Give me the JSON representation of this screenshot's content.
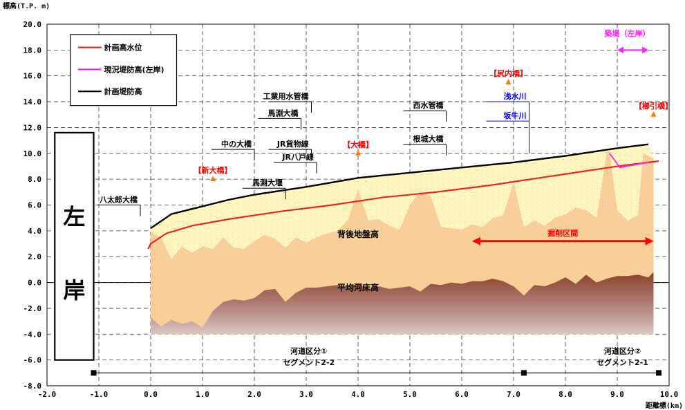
{
  "chart_data": {
    "type": "area",
    "ylabel": "標高(T.P. m)",
    "xlabel": "距離標(km)",
    "xlim": [
      -2.0,
      10.0
    ],
    "ylim": [
      -8.0,
      20.0
    ],
    "x_ticks": [
      "-2.0",
      "-1.0",
      "0.0",
      "1.0",
      "2.0",
      "3.0",
      "4.0",
      "5.0",
      "6.0",
      "7.0",
      "8.0",
      "9.0",
      "10.0"
    ],
    "y_ticks": [
      "20.0",
      "18.0",
      "16.0",
      "14.0",
      "12.0",
      "10.0",
      "8.0",
      "6.0",
      "4.0",
      "2.0",
      "0.0",
      "-2.0",
      "-4.0",
      "-6.0",
      "-8.0"
    ],
    "grid": true,
    "legend_position": "top-left",
    "series": [
      {
        "name": "計画高水位",
        "color": "#e8281e",
        "x": [
          -0.05,
          0.0,
          0.3,
          0.8,
          1.5,
          2.5,
          3.5,
          4.5,
          5.5,
          6.5,
          7.5,
          8.5,
          9.0,
          9.8
        ],
        "y": [
          2.6,
          3.0,
          3.8,
          4.4,
          4.9,
          5.5,
          6.0,
          6.6,
          7.0,
          7.5,
          8.1,
          8.7,
          9.0,
          9.4
        ]
      },
      {
        "name": "現況堤防高(左岸)",
        "color": "#ff22ff",
        "x": [
          8.85,
          9.05,
          9.6
        ],
        "y": [
          10.0,
          8.9,
          9.3
        ]
      },
      {
        "name": "計画堤防高",
        "color": "#000000",
        "x": [
          0.0,
          0.4,
          1.0,
          1.5,
          2.0,
          3.0,
          4.0,
          5.0,
          6.0,
          7.0,
          8.0,
          9.0,
          9.6
        ],
        "y": [
          4.2,
          5.3,
          5.9,
          6.4,
          6.8,
          7.4,
          8.1,
          8.5,
          8.9,
          9.3,
          9.8,
          10.4,
          10.7
        ]
      },
      {
        "name": "背後地盤高",
        "x": [
          0.0,
          0.2,
          0.4,
          0.6,
          0.8,
          1.0,
          1.2,
          1.4,
          1.6,
          1.8,
          2.0,
          2.2,
          2.4,
          2.6,
          2.8,
          3.0,
          3.2,
          3.4,
          3.6,
          3.8,
          4.0,
          4.2,
          4.4,
          4.6,
          4.8,
          5.0,
          5.2,
          5.4,
          5.6,
          5.8,
          6.0,
          6.2,
          6.4,
          6.6,
          6.8,
          7.0,
          7.2,
          7.4,
          7.6,
          7.8,
          8.0,
          8.2,
          8.4,
          8.6,
          8.8,
          8.85,
          9.0,
          9.2,
          9.4,
          9.5,
          9.7
        ],
        "y": [
          3.9,
          3.5,
          1.8,
          2.8,
          2.3,
          2.8,
          2.6,
          3.5,
          2.7,
          2.6,
          3.2,
          3.7,
          3.4,
          2.7,
          3.5,
          3.1,
          3.5,
          3.8,
          4.0,
          4.8,
          7.2,
          4.8,
          4.9,
          4.4,
          4.1,
          6.0,
          7.1,
          6.7,
          4.3,
          4.2,
          4.1,
          4.5,
          4.3,
          5.0,
          5.2,
          7.8,
          4.3,
          4.8,
          4.4,
          5.0,
          5.3,
          5.8,
          5.6,
          5.0,
          10.1,
          10.2,
          5.6,
          4.8,
          5.2,
          10.0,
          9.6
        ]
      },
      {
        "name": "平均河床高",
        "x": [
          0.0,
          0.2,
          0.4,
          0.6,
          0.8,
          1.0,
          1.2,
          1.4,
          1.6,
          1.8,
          2.0,
          2.2,
          2.4,
          2.6,
          2.8,
          3.0,
          3.2,
          3.4,
          3.6,
          3.8,
          4.0,
          4.2,
          4.4,
          4.6,
          4.8,
          5.0,
          5.2,
          5.4,
          5.6,
          5.8,
          6.0,
          6.2,
          6.4,
          6.6,
          6.8,
          7.0,
          7.2,
          7.4,
          7.6,
          7.8,
          8.0,
          8.2,
          8.4,
          8.6,
          8.8,
          9.0,
          9.2,
          9.4,
          9.6,
          9.7
        ],
        "y": [
          -2.7,
          -3.4,
          -2.9,
          -3.2,
          -3.0,
          -3.5,
          -2.2,
          -1.5,
          -1.3,
          -1.4,
          -1.2,
          -0.6,
          -0.5,
          -1.5,
          -0.8,
          -0.4,
          -0.4,
          -0.3,
          -0.2,
          -0.3,
          -0.1,
          -0.5,
          -0.3,
          -0.5,
          -0.4,
          -0.3,
          -0.7,
          -0.1,
          -0.2,
          0.0,
          -0.1,
          0.1,
          0.1,
          0.3,
          0.1,
          -0.3,
          -1.0,
          -0.2,
          -0.3,
          0.0,
          0.4,
          -0.1,
          0.6,
          0.0,
          0.3,
          0.5,
          0.5,
          0.6,
          0.4,
          0.8
        ]
      }
    ],
    "landmarks": [
      {
        "label": "【新大橋】",
        "x": 1.2,
        "y": 8.0,
        "color": "#ff0000"
      },
      {
        "label": "【大橋】",
        "x": 4.0,
        "y": 10.0,
        "color": "#ff0000"
      },
      {
        "label": "【尻内橋】",
        "x": 6.9,
        "y": 15.5,
        "color": "#ff0000"
      },
      {
        "label": "【櫛引橋】",
        "x": 9.7,
        "y": 13.0,
        "color": "#ff0000"
      }
    ],
    "structures": [
      {
        "label": "八太郎大橋",
        "x": -0.2,
        "y": 6.0
      },
      {
        "label": "中の大橋",
        "x": 2.0,
        "y": 10.3
      },
      {
        "label": "馬淵大堰",
        "x": 2.6,
        "y": 7.3
      },
      {
        "label": "JR貨物線",
        "x": 3.1,
        "y": 10.3
      },
      {
        "label": "JR八戸線",
        "x": 3.2,
        "y": 9.3
      },
      {
        "label": "工業用水管橋",
        "x": 3.1,
        "y": 14.0
      },
      {
        "label": "馬淵大橋",
        "x": 2.9,
        "y": 12.7
      },
      {
        "label": "西水管橋",
        "x": 5.7,
        "y": 13.3
      },
      {
        "label": "根城大橋",
        "x": 5.7,
        "y": 10.7
      },
      {
        "label": "浅水川",
        "x": 7.3,
        "y": 14.0
      },
      {
        "label": "坂牛川",
        "x": 7.3,
        "y": 12.5
      }
    ],
    "annotations": {
      "side": [
        "左",
        "岸"
      ],
      "back_ground": "背後地盤高",
      "riverbed": "平均河床高",
      "excavation": "掘削区間",
      "excavation_range": [
        6.2,
        9.7
      ],
      "levee_new": "築堤（左岸）",
      "levee_range": [
        9.0,
        9.6
      ],
      "seg1_line1": "河道区分①",
      "seg1_line2": "セグメント2-2",
      "seg2_line1": "河道区分②",
      "seg2_line2": "セグメント2-1",
      "segment_marks": [
        -1.1,
        7.2,
        9.8
      ]
    }
  }
}
